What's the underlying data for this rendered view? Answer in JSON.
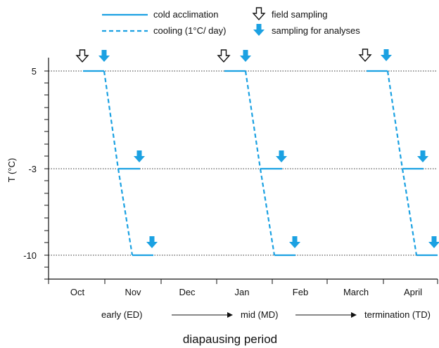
{
  "legend": {
    "cold_acclimation": "cold acclimation",
    "cooling": "cooling (1°C/ day)",
    "field_sampling": "field sampling",
    "sampling_for_analyses": "sampling for analyses"
  },
  "colors": {
    "accent": "#1ba1e2",
    "axis": "#111111",
    "grid": "#333333"
  },
  "chart_data": {
    "type": "line",
    "title": "",
    "xlabel": "diapausing period",
    "ylabel": "T (°C)",
    "x_categories": [
      "Oct",
      "Nov",
      "Dec",
      "Jan",
      "Feb",
      "March",
      "April"
    ],
    "y_ticks": [
      5,
      -3,
      -10
    ],
    "y_tick_labels": [
      "5",
      "-3",
      "-10"
    ],
    "ylim": [
      -12,
      5
    ],
    "reference_lines": [
      5,
      -3,
      -10
    ],
    "phases": [
      {
        "label": "early  (ED)"
      },
      {
        "label": "mid (MD)"
      },
      {
        "label": "termination (TD)"
      }
    ],
    "protocol": {
      "start_temperature": 5,
      "cooling_rate": "1°C/ day",
      "hold_temperatures": [
        5,
        -3,
        -10
      ],
      "field_sampling_at": 5,
      "analysis_sampling_at": [
        5,
        -3,
        -10
      ]
    }
  }
}
